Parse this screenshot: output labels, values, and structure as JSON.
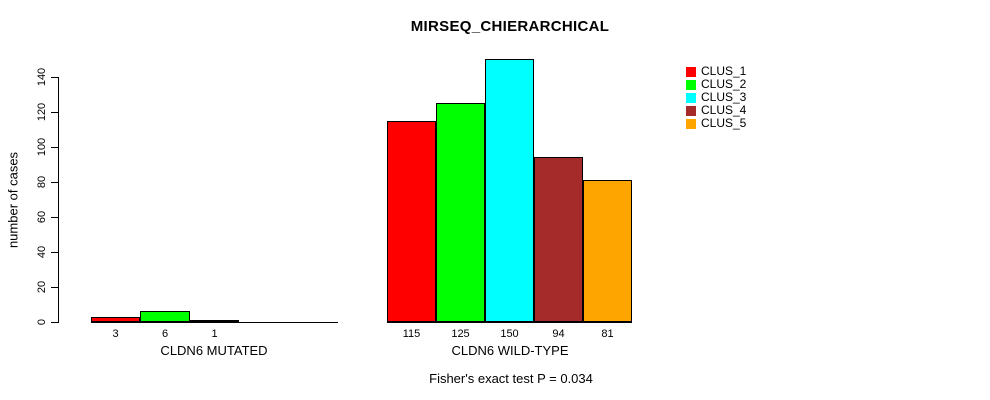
{
  "chart": {
    "title": "MIRSEQ_CHIERARCHICAL",
    "ylabel": "number of cases",
    "footer": "Fisher's exact test P = 0.034"
  },
  "chart_data": {
    "type": "bar",
    "title": "MIRSEQ_CHIERARCHICAL",
    "xlabel": "",
    "ylabel": "number of cases",
    "ylim": [
      0,
      150
    ],
    "y_ticks": [
      0,
      20,
      40,
      60,
      80,
      100,
      120,
      140
    ],
    "grid": false,
    "legend_position": "top-right",
    "legend": [
      {
        "label": "CLUS_1",
        "color": "#FF0000"
      },
      {
        "label": "CLUS_2",
        "color": "#00FF00"
      },
      {
        "label": "CLUS_3",
        "color": "#00FFFF"
      },
      {
        "label": "CLUS_4",
        "color": "#A52A2A"
      },
      {
        "label": "CLUS_5",
        "color": "#FFA500"
      }
    ],
    "groups": [
      {
        "label": "CLDN6 MUTATED",
        "values": [
          3,
          6,
          1,
          0,
          0
        ],
        "value_labels": [
          "3",
          "6",
          "1",
          "",
          ""
        ]
      },
      {
        "label": "CLDN6 WILD-TYPE",
        "values": [
          115,
          125,
          150,
          94,
          81
        ],
        "value_labels": [
          "115",
          "125",
          "150",
          "94",
          "81"
        ]
      }
    ],
    "annotation": "Fisher's exact test P = 0.034"
  }
}
